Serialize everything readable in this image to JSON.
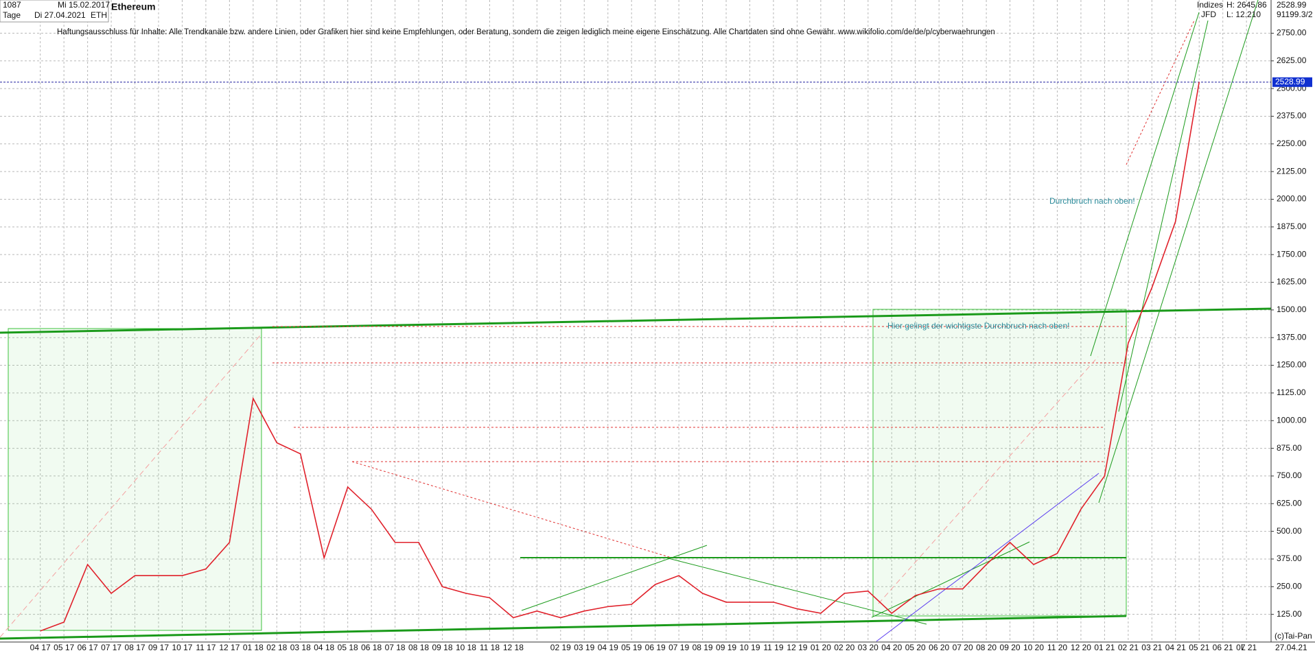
{
  "header": {
    "count": "1087",
    "start": "Mi 15.02.2017",
    "period": "Tage",
    "end": "Di 27.04.2021",
    "symbol": "ETH",
    "title": "Ethereum",
    "market": "Indizes",
    "broker": "JFD",
    "high": "H: 2645.86",
    "low": "L: 12.210",
    "volume": "91199.3/2"
  },
  "disclaimer": "Haftungsausschluss für Inhalte: Alle Trendkanäle bzw. andere Linien, oder Grafiken hier sind keine Empfehlungen, oder Beratung, sondern die zeigen lediglich meine eigene Einschätzung. Alle Chartdaten sind ohne Gewähr.  www.wikifolio.com/de/de/p/cyberwaehrungen",
  "annotations": [
    "Durchbruch nach oben!",
    "Hier gelingt der wichtigste Durchbruch nach oben!"
  ],
  "footer": {
    "copyright": "(c)Tai-Pan",
    "date": "27.04.21",
    "scale": "L"
  },
  "chart_data": {
    "type": "line",
    "title": "Ethereum",
    "x": [
      "04 17",
      "05 17",
      "06 17",
      "07 17",
      "08 17",
      "09 17",
      "10 17",
      "11 17",
      "12 17",
      "01 18",
      "02 18",
      "03 18",
      "04 18",
      "05 18",
      "06 18",
      "07 18",
      "08 18",
      "09 18",
      "10 18",
      "11 18",
      "12 18",
      null,
      "02 19",
      "03 19",
      "04 19",
      "05 19",
      "06 19",
      "07 19",
      "08 19",
      "09 19",
      "10 19",
      "11 19",
      "12 19",
      "01 20",
      "02 20",
      "03 20",
      "04 20",
      "05 20",
      "06 20",
      "07 20",
      "08 20",
      "09 20",
      "10 20",
      "11 20",
      "12 20",
      "01 21",
      "02 21",
      "03 21",
      "04 21",
      "05 21",
      "06 21",
      "07 21"
    ],
    "series": [
      {
        "name": "ETH",
        "color": "#e0202a",
        "values": [
          50,
          90,
          350,
          220,
          300,
          300,
          300,
          330,
          450,
          1100,
          900,
          850,
          380,
          700,
          600,
          450,
          450,
          250,
          220,
          200,
          110,
          140,
          110,
          140,
          160,
          170,
          260,
          300,
          220,
          180,
          180,
          180,
          150,
          130,
          220,
          230,
          130,
          210,
          240,
          240,
          350,
          450,
          350,
          400,
          600,
          750,
          1350,
          1600,
          1900,
          2530,
          null,
          null
        ]
      }
    ],
    "last_value": 2528.99,
    "ylim": [
      0,
      2900
    ],
    "yticks": [
      {
        "value": 125,
        "label": "125.00"
      },
      {
        "value": 250,
        "label": "250.00"
      },
      {
        "value": 375,
        "label": "375.00"
      },
      {
        "value": 500,
        "label": "500.00"
      },
      {
        "value": 625,
        "label": "625.00"
      },
      {
        "value": 750,
        "label": "750.00"
      },
      {
        "value": 875,
        "label": "875.00"
      },
      {
        "value": 1000,
        "label": "1000.00"
      },
      {
        "value": 1125,
        "label": "1125.00"
      },
      {
        "value": 1250,
        "label": "1250.00"
      },
      {
        "value": 1375,
        "label": "1375.00"
      },
      {
        "value": 1500,
        "label": "1500.00"
      },
      {
        "value": 1625,
        "label": "1625.00"
      },
      {
        "value": 1750,
        "label": "1750.00"
      },
      {
        "value": 1875,
        "label": "1875.00"
      },
      {
        "value": 2000,
        "label": "2000.00"
      },
      {
        "value": 2125,
        "label": "2125.00"
      },
      {
        "value": 2250,
        "label": "2250.00"
      },
      {
        "value": 2375,
        "label": "2375.00"
      },
      {
        "value": 2500,
        "label": "2500.00"
      },
      {
        "value": 2625,
        "label": "2625.00"
      },
      {
        "value": 2750,
        "label": "2750.00"
      }
    ],
    "grid": true
  }
}
